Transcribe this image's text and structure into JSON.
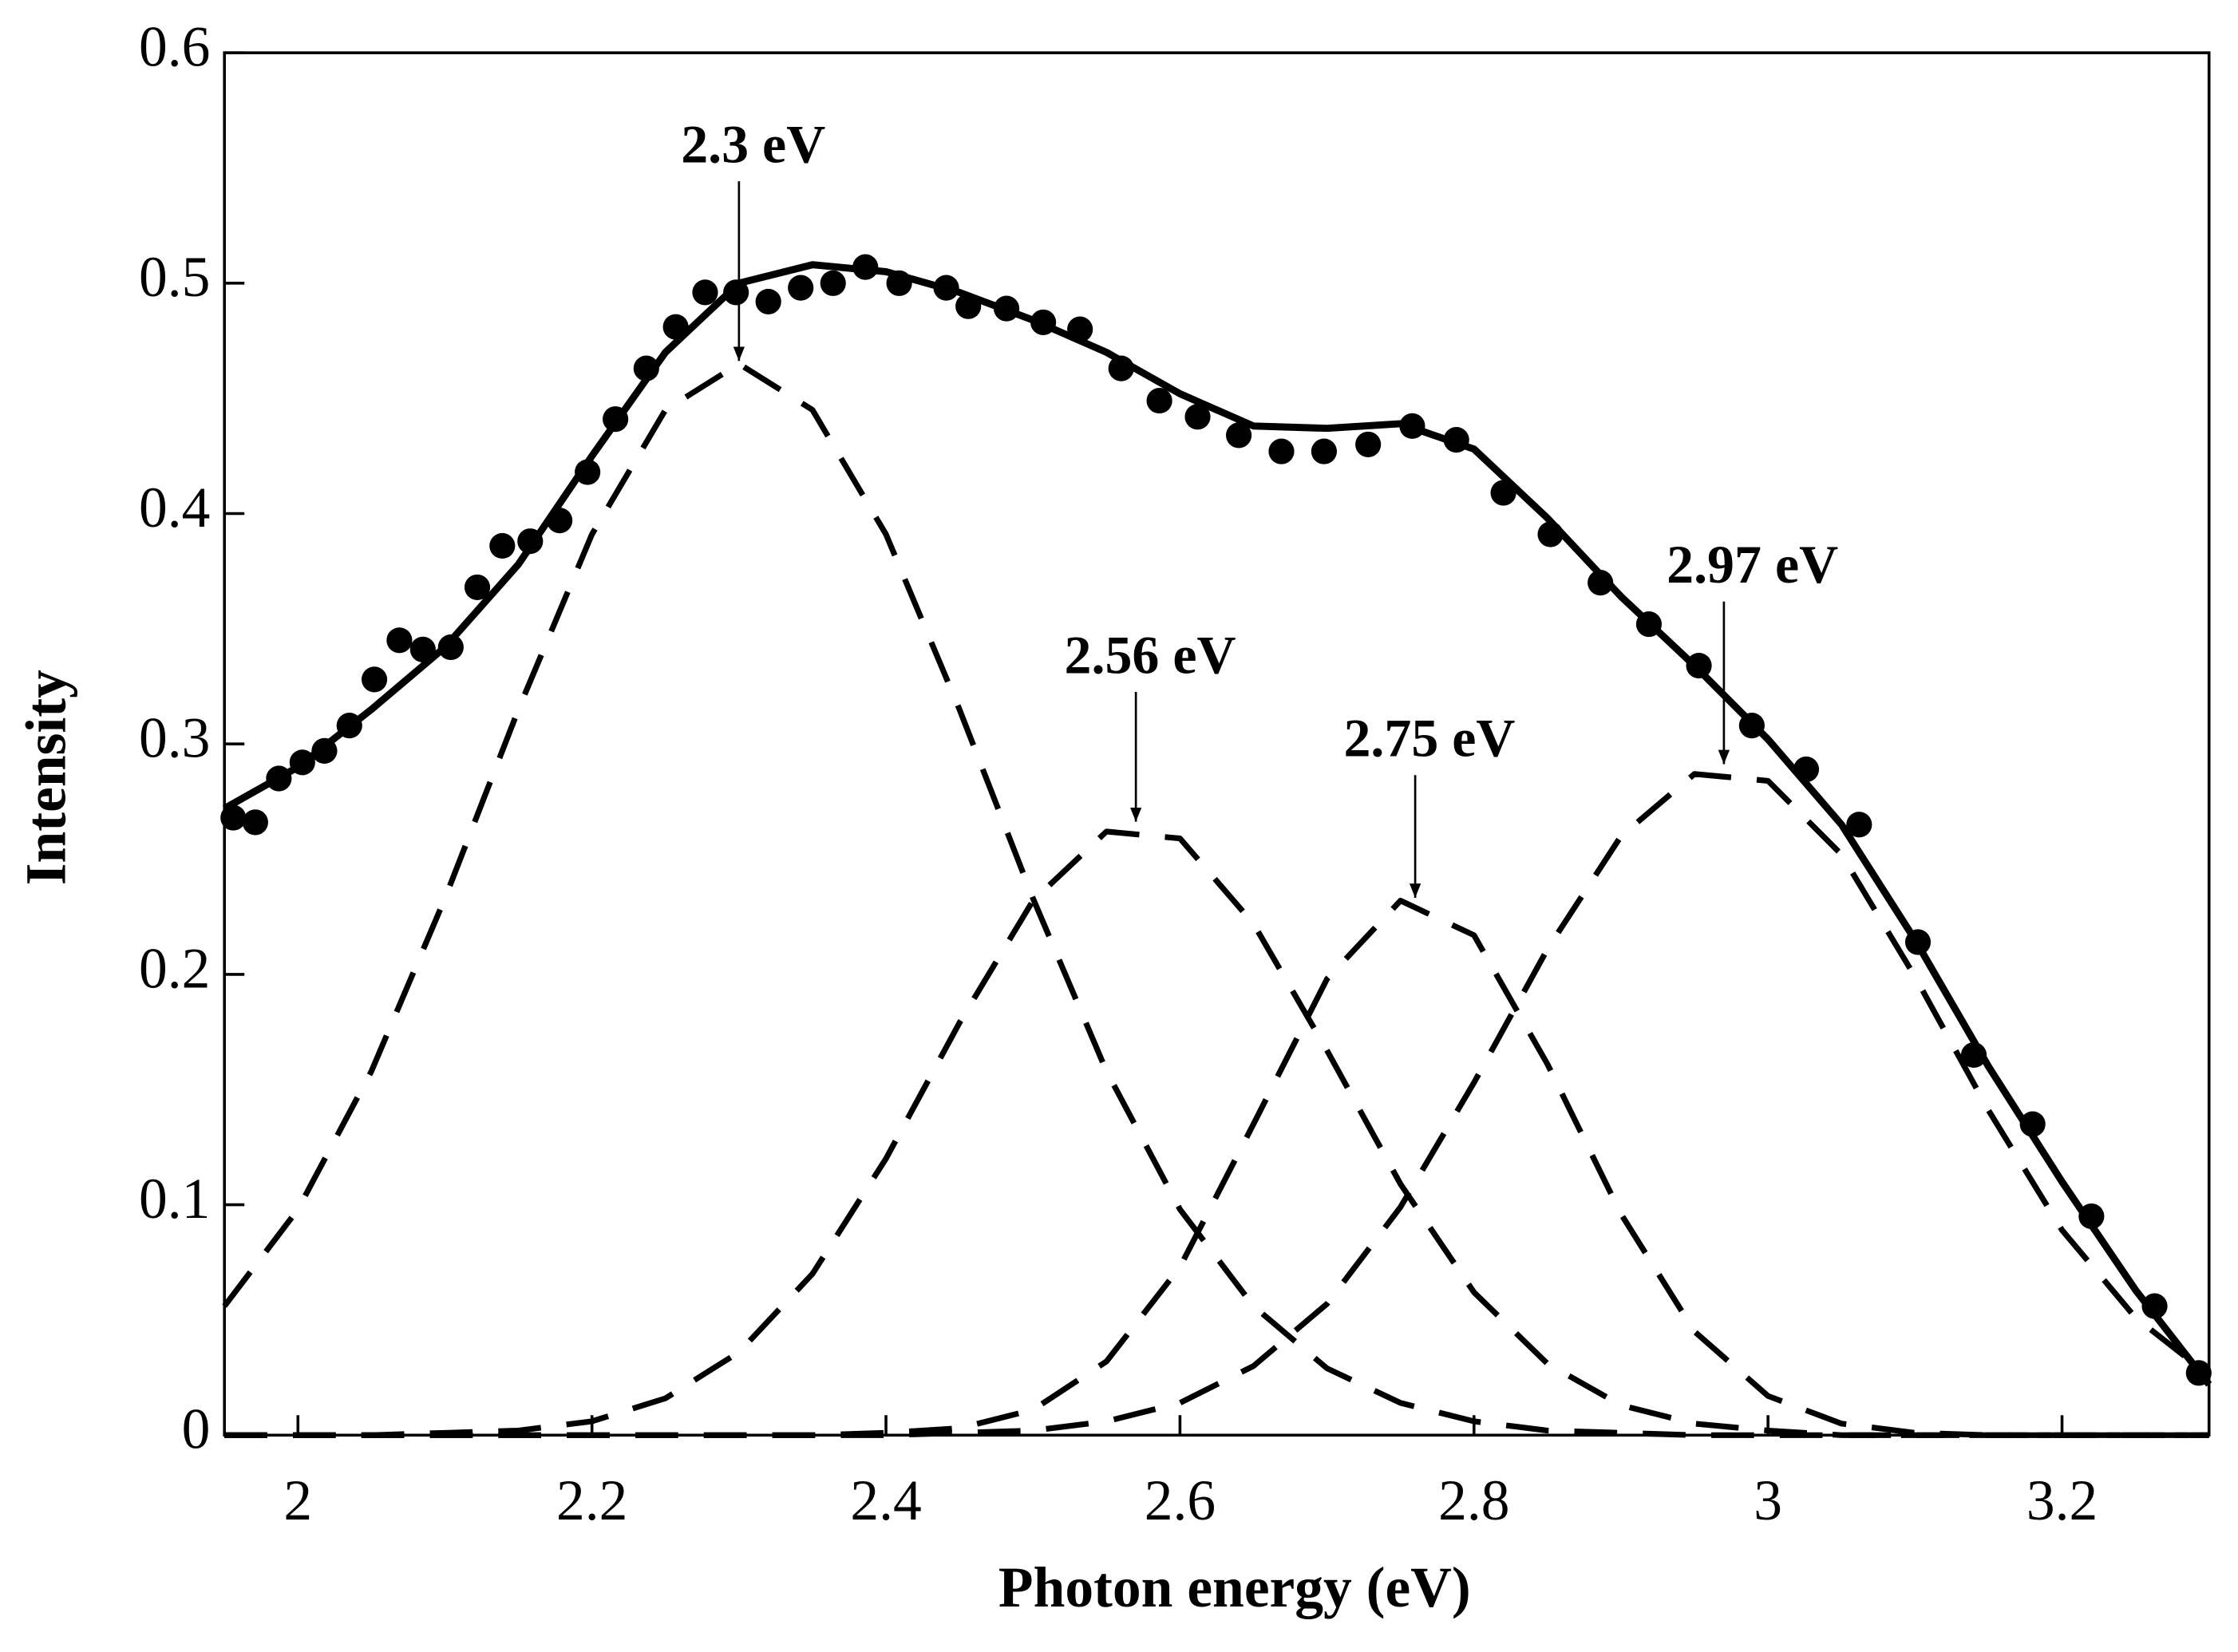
{
  "chart_data": {
    "type": "line",
    "xlabel": "Photon energy (eV)",
    "ylabel": "Intensity",
    "xlim": [
      1.95,
      3.3
    ],
    "ylim": [
      0,
      0.6
    ],
    "xticks": [
      2,
      2.2,
      2.4,
      2.6,
      2.8,
      3,
      3.2
    ],
    "yticks": [
      0,
      0.1,
      0.2,
      0.3,
      0.4,
      0.5,
      0.6
    ],
    "x": [
      1.95,
      2.0,
      2.05,
      2.1,
      2.15,
      2.2,
      2.25,
      2.3,
      2.35,
      2.4,
      2.45,
      2.5,
      2.55,
      2.6,
      2.65,
      2.7,
      2.75,
      2.8,
      2.85,
      2.9,
      2.95,
      3.0,
      3.05,
      3.1,
      3.15,
      3.2,
      3.25,
      3.3
    ],
    "series": [
      {
        "color": "#000000",
        "style": "solid",
        "values": [
          0.272,
          0.29,
          0.315,
          0.342,
          0.378,
          0.425,
          0.47,
          0.5,
          0.508,
          0.505,
          0.496,
          0.484,
          0.47,
          0.452,
          0.438,
          0.437,
          0.439,
          0.428,
          0.398,
          0.364,
          0.334,
          0.302,
          0.265,
          0.215,
          0.16,
          0.11,
          0.063,
          0.022
        ]
      },
      {
        "color": "#000000",
        "style": "dashed",
        "values": [
          0.056,
          0.098,
          0.158,
          0.233,
          0.315,
          0.391,
          0.445,
          0.465,
          0.445,
          0.391,
          0.315,
          0.233,
          0.158,
          0.098,
          0.056,
          0.029,
          0.014,
          0.006,
          0.002,
          0.001,
          0,
          0,
          0,
          0,
          0,
          0,
          0,
          0
        ]
      },
      {
        "color": "#000000",
        "style": "dashed",
        "values": [
          0,
          0,
          0,
          0.001,
          0.002,
          0.006,
          0.016,
          0.036,
          0.07,
          0.12,
          0.179,
          0.232,
          0.262,
          0.259,
          0.222,
          0.167,
          0.109,
          0.062,
          0.031,
          0.013,
          0.005,
          0.002,
          0,
          0,
          0,
          0,
          0,
          0
        ]
      },
      {
        "color": "#000000",
        "style": "dashed",
        "values": [
          0,
          0,
          0,
          0,
          0,
          0,
          0,
          0,
          0,
          0.001,
          0.003,
          0.011,
          0.032,
          0.073,
          0.135,
          0.198,
          0.232,
          0.217,
          0.161,
          0.096,
          0.045,
          0.017,
          0.005,
          0.001,
          0,
          0,
          0,
          0
        ]
      },
      {
        "color": "#000000",
        "style": "dashed",
        "values": [
          0,
          0,
          0,
          0,
          0,
          0,
          0,
          0,
          0,
          0,
          0.001,
          0.002,
          0.006,
          0.014,
          0.03,
          0.057,
          0.099,
          0.153,
          0.211,
          0.26,
          0.287,
          0.284,
          0.252,
          0.199,
          0.141,
          0.089,
          0.051,
          0.026
        ]
      }
    ],
    "points": {
      "color": "#000000",
      "x": [
        1.956,
        1.971,
        1.987,
        2.003,
        2.018,
        2.035,
        2.052,
        2.069,
        2.085,
        2.104,
        2.122,
        2.139,
        2.158,
        2.178,
        2.197,
        2.216,
        2.237,
        2.257,
        2.277,
        2.298,
        2.32,
        2.342,
        2.364,
        2.386,
        2.409,
        2.441,
        2.456,
        2.482,
        2.507,
        2.532,
        2.56,
        2.586,
        2.612,
        2.64,
        2.669,
        2.698,
        2.728,
        2.758,
        2.788,
        2.82,
        2.852,
        2.886,
        2.919,
        2.953,
        2.989,
        3.026,
        3.062,
        3.102,
        3.14,
        3.18,
        3.22,
        3.263,
        3.293
      ],
      "values": [
        0.268,
        0.266,
        0.285,
        0.292,
        0.297,
        0.308,
        0.328,
        0.345,
        0.341,
        0.342,
        0.368,
        0.386,
        0.388,
        0.397,
        0.418,
        0.441,
        0.463,
        0.481,
        0.496,
        0.496,
        0.492,
        0.498,
        0.5,
        0.507,
        0.5,
        0.498,
        0.49,
        0.489,
        0.483,
        0.48,
        0.463,
        0.449,
        0.442,
        0.434,
        0.427,
        0.427,
        0.43,
        0.438,
        0.432,
        0.409,
        0.391,
        0.37,
        0.352,
        0.334,
        0.308,
        0.289,
        0.265,
        0.214,
        0.165,
        0.135,
        0.095,
        0.056,
        0.027
      ]
    },
    "annotations": [
      {
        "text": "2.3 eV",
        "x": 2.3,
        "y": 0.465
      },
      {
        "text": "2.56 eV",
        "x": 2.57,
        "y": 0.265
      },
      {
        "text": "2.75 eV",
        "x": 2.76,
        "y": 0.232
      },
      {
        "text": "2.97 eV",
        "x": 2.97,
        "y": 0.29
      }
    ]
  }
}
